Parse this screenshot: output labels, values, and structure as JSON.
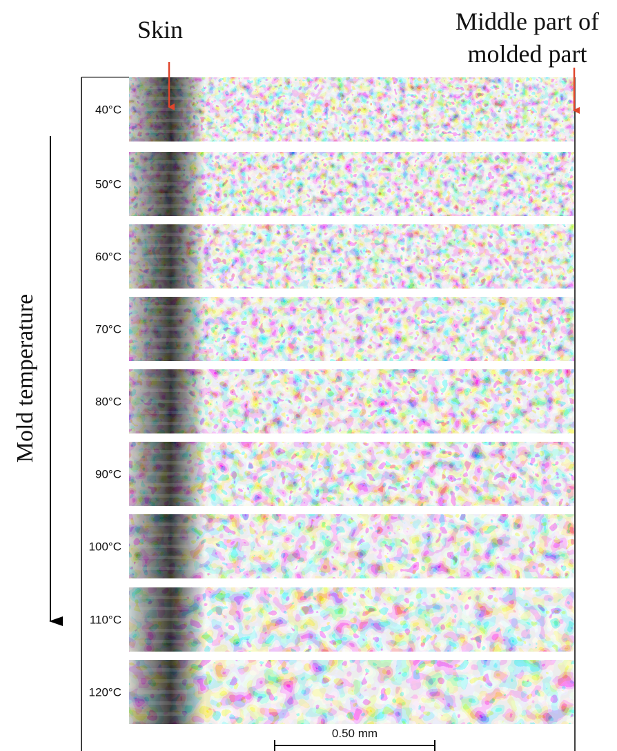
{
  "header": {
    "skin_label": "Skin",
    "middle_label_lines": [
      "Middle part of",
      "molded part"
    ]
  },
  "axis_label": "Mold temperature",
  "rows": [
    "40°C",
    "50°C",
    "60°C",
    "70°C",
    "80°C",
    "90°C",
    "100°C",
    "110°C",
    "120°C"
  ],
  "scale_bar": "0.50 mm"
}
